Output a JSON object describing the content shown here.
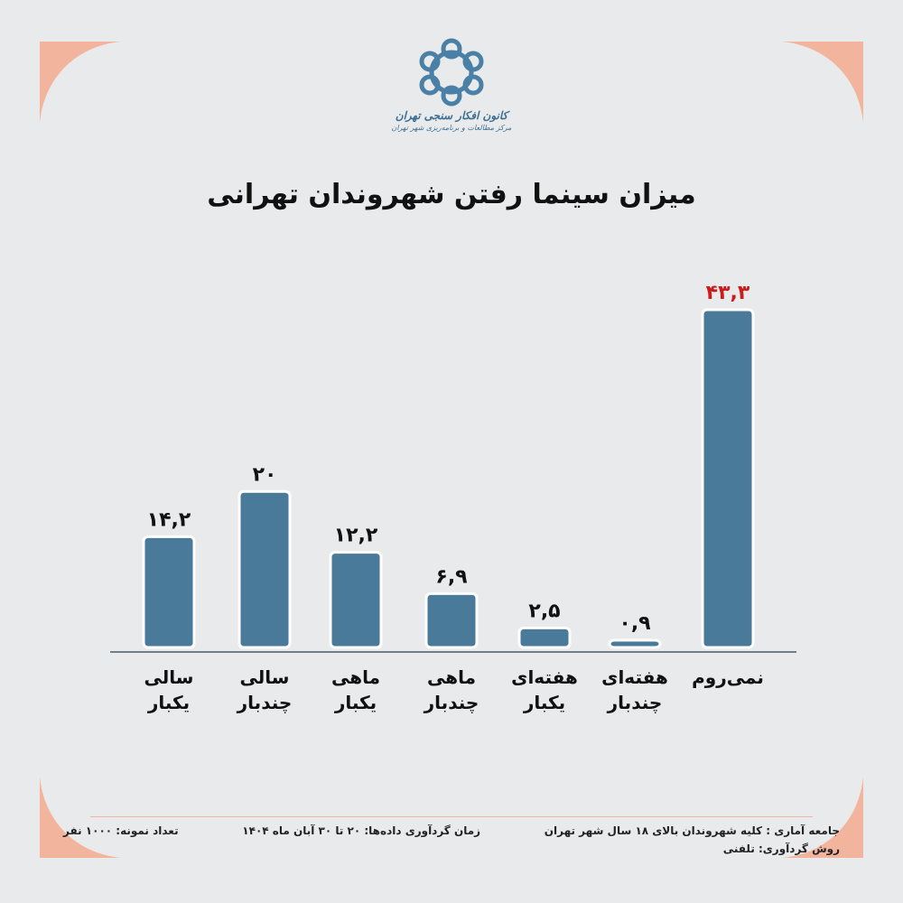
{
  "logo": {
    "text": "کانون افکار سنجی تهران",
    "subtext": "مرکز مطالعات و برنامه‌ریزی شهر تهران",
    "color": "#4a7fa6"
  },
  "colors": {
    "background": "#e9eaec",
    "corner": "#f2b49c",
    "bar": "#4a7a99",
    "highlight_label": "#cc1b1b",
    "label": "#111111"
  },
  "chart_data": {
    "type": "bar",
    "title": "میزان سینما رفتن شهروندان تهرانی",
    "categories": [
      "سالی یکبار",
      "سالی چندبار",
      "ماهی یکبار",
      "ماهی چندبار",
      "هفته‌ای یکبار",
      "هفته‌ای چندبار",
      "نمی‌روم"
    ],
    "values": [
      14.2,
      20,
      12.2,
      6.9,
      2.5,
      0.9,
      43.3
    ],
    "data_labels": [
      "۱۴,۲",
      "۲۰",
      "۱۲,۲",
      "۶,۹",
      "۲,۵",
      "۰,۹",
      "۴۳,۳"
    ],
    "highlighted_index": 6,
    "ylim": [
      0,
      43.3
    ],
    "grid": false,
    "axes_visible": false
  },
  "footer": {
    "population": "جامعه آماری : کلیه شهروندان بالای ۱۸ سال شهر تهران",
    "time": "زمان گردآوری داده‌ها: ۲۰ تا ۳۰ آبان ماه ۱۴۰۴",
    "sample": "تعداد نمونه: ۱۰۰۰ نفر",
    "method": "روش گردآوری: تلفنی"
  }
}
